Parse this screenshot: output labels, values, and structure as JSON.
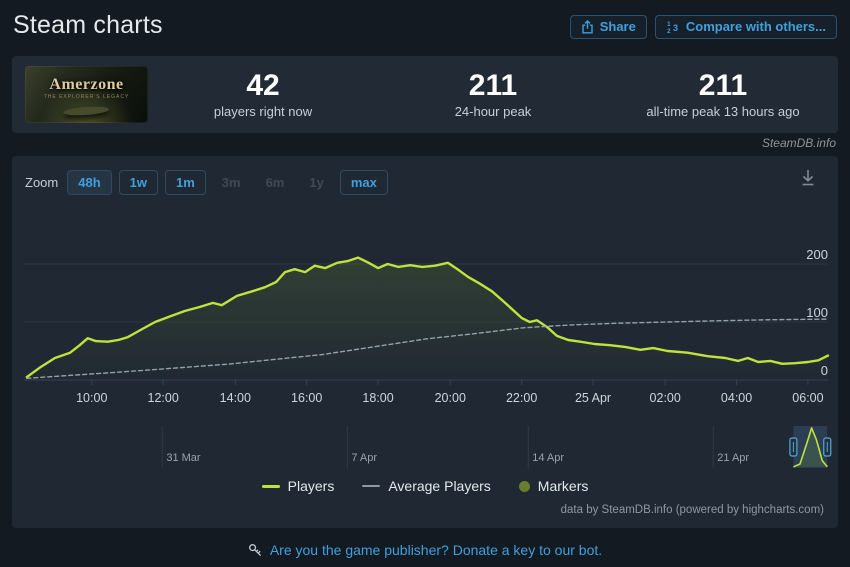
{
  "header": {
    "title": "Steam charts",
    "share_label": "Share",
    "compare_label": "Compare with others..."
  },
  "stats": {
    "game_title": "Amerzone",
    "game_subtitle": "The Explorer's Legacy",
    "current": {
      "value": "42",
      "label": "players right now"
    },
    "peak24": {
      "value": "211",
      "label": "24-hour peak"
    },
    "alltime": {
      "value": "211",
      "label": "all-time peak 13 hours ago"
    }
  },
  "watermark": "SteamDB.info",
  "toolbar": {
    "zoom_label": "Zoom",
    "ranges": [
      {
        "label": "48h",
        "state": "active"
      },
      {
        "label": "1w",
        "state": "enabled"
      },
      {
        "label": "1m",
        "state": "enabled"
      },
      {
        "label": "3m",
        "state": "disabled"
      },
      {
        "label": "6m",
        "state": "disabled"
      },
      {
        "label": "1y",
        "state": "disabled"
      },
      {
        "label": "max",
        "state": "enabled"
      }
    ]
  },
  "chart_data": {
    "type": "line",
    "title": "",
    "xlabel": "",
    "ylabel": "",
    "ylim": [
      0,
      240
    ],
    "yticks": [
      0,
      100,
      200
    ],
    "grid": true,
    "legend_position": "bottom",
    "xticks": [
      {
        "label": "10:00",
        "pct": 8.2
      },
      {
        "label": "12:00",
        "pct": 17.1
      },
      {
        "label": "14:00",
        "pct": 26.1
      },
      {
        "label": "16:00",
        "pct": 35.0
      },
      {
        "label": "18:00",
        "pct": 43.9
      },
      {
        "label": "20:00",
        "pct": 52.9
      },
      {
        "label": "22:00",
        "pct": 61.8
      },
      {
        "label": "25 Apr",
        "pct": 70.7
      },
      {
        "label": "02:00",
        "pct": 79.7
      },
      {
        "label": "04:00",
        "pct": 88.6
      },
      {
        "label": "06:00",
        "pct": 97.5
      }
    ],
    "series": [
      {
        "name": "Players",
        "color": "#bfe33d",
        "style": "solid",
        "fill": true,
        "points": [
          [
            0.1,
            5
          ],
          [
            1.7,
            21
          ],
          [
            3.6,
            38
          ],
          [
            5.5,
            47
          ],
          [
            6.7,
            60
          ],
          [
            7.7,
            72
          ],
          [
            8.7,
            67
          ],
          [
            10.2,
            66
          ],
          [
            11.5,
            69
          ],
          [
            12.7,
            74
          ],
          [
            14.5,
            88
          ],
          [
            16.1,
            100
          ],
          [
            18,
            110
          ],
          [
            19.8,
            119
          ],
          [
            21.7,
            126
          ],
          [
            23.3,
            133
          ],
          [
            24.4,
            129
          ],
          [
            26.3,
            145
          ],
          [
            28.2,
            153
          ],
          [
            29.8,
            160
          ],
          [
            31.2,
            169
          ],
          [
            32.3,
            186
          ],
          [
            33.5,
            191
          ],
          [
            34.8,
            186
          ],
          [
            36,
            197
          ],
          [
            37.3,
            193
          ],
          [
            38.8,
            202
          ],
          [
            40.1,
            205
          ],
          [
            41.4,
            211
          ],
          [
            42.6,
            203
          ],
          [
            43.9,
            193
          ],
          [
            45.1,
            200
          ],
          [
            46.4,
            195
          ],
          [
            47.9,
            198
          ],
          [
            49.4,
            195
          ],
          [
            51,
            197
          ],
          [
            52.6,
            202
          ],
          [
            53.9,
            190
          ],
          [
            55.1,
            178
          ],
          [
            56.6,
            166
          ],
          [
            58.1,
            153
          ],
          [
            59.5,
            136
          ],
          [
            60.7,
            121
          ],
          [
            61.8,
            107
          ],
          [
            62.8,
            100
          ],
          [
            63.7,
            103
          ],
          [
            65,
            91
          ],
          [
            66.2,
            76
          ],
          [
            67.6,
            69
          ],
          [
            69.1,
            66
          ],
          [
            70.9,
            62
          ],
          [
            72.8,
            60
          ],
          [
            74.7,
            57
          ],
          [
            76.6,
            52
          ],
          [
            78.2,
            55
          ],
          [
            80,
            50
          ],
          [
            82.5,
            47
          ],
          [
            85,
            41
          ],
          [
            87.2,
            38
          ],
          [
            88.8,
            33
          ],
          [
            90,
            38
          ],
          [
            91.3,
            31
          ],
          [
            92.8,
            33
          ],
          [
            94.3,
            28
          ],
          [
            95.9,
            29
          ],
          [
            97.5,
            31
          ],
          [
            98.8,
            34
          ],
          [
            100,
            42
          ]
        ]
      },
      {
        "name": "Average Players",
        "color": "#93a1aa",
        "style": "dashed",
        "fill": false,
        "points": [
          [
            0.1,
            3
          ],
          [
            12,
            14
          ],
          [
            25,
            27
          ],
          [
            37,
            44
          ],
          [
            50,
            71
          ],
          [
            56,
            80
          ],
          [
            62,
            90
          ],
          [
            68,
            95
          ],
          [
            74,
            98
          ],
          [
            80,
            100
          ],
          [
            86,
            102
          ],
          [
            93,
            104
          ],
          [
            100,
            105
          ]
        ]
      }
    ],
    "legend": {
      "players": "Players",
      "average": "Average Players",
      "markers": "Markers"
    },
    "navigator": {
      "labels": [
        {
          "label": "31 Mar",
          "pct": 18.2
        },
        {
          "label": "7 Apr",
          "pct": 40.6
        },
        {
          "label": "14 Apr",
          "pct": 62.5
        },
        {
          "label": "21 Apr",
          "pct": 84.9
        }
      ],
      "selection_pct": [
        94.6,
        98.7
      ],
      "curve": [
        [
          94.6,
          3
        ],
        [
          95.4,
          10
        ],
        [
          96.2,
          60
        ],
        [
          96.8,
          100
        ],
        [
          97.4,
          70
        ],
        [
          98.1,
          18
        ],
        [
          98.7,
          3
        ]
      ]
    }
  },
  "credits": "data by SteamDB.info (powered by highcharts.com)",
  "footer": {
    "link": "Are you the game publisher? Donate a key to our bot."
  },
  "colors": {
    "accent_blue": "#3fa0de",
    "players_line": "#bfe33d",
    "average_line": "#93a1aa",
    "markers_dot": "#6b7c2d",
    "panel_bg": "#202933",
    "stats_bg": "#222b35",
    "page_bg": "#141a21"
  }
}
